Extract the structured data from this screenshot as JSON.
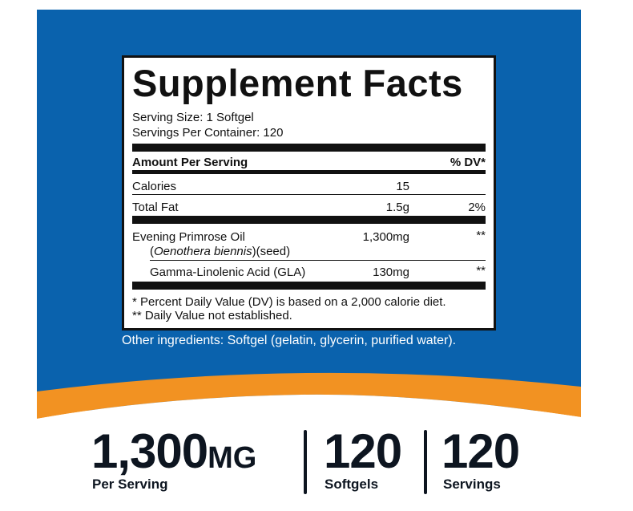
{
  "colors": {
    "background_blue": "#0a62ad",
    "accent_orange": "#f29222",
    "text_dark": "#0d1520"
  },
  "label": {
    "title": "Supplement Facts",
    "serving_size": "Serving Size: 1 Softgel",
    "servings_per_container": "Servings Per Container: 120",
    "header_amount": "Amount Per Serving",
    "header_dv": "% DV*",
    "rows": [
      {
        "name": "Calories",
        "amount": "15",
        "dv": ""
      },
      {
        "name": "Total Fat",
        "amount": "1.5g",
        "dv": "2%"
      },
      {
        "name": "Evening Primrose Oil",
        "sub_italic": "Oenothera biennis",
        "sub_paren_open": "(",
        "sub_rest": ")(seed)",
        "amount": "1,300mg",
        "dv": "**"
      },
      {
        "name": "Gamma-Linolenic Acid (GLA)",
        "amount": "130mg",
        "dv": "**"
      }
    ],
    "footnote1": "* Percent Daily Value (DV) is based on a 2,000 calorie diet.",
    "footnote2": "** Daily Value not established."
  },
  "other_ingredients": "Other ingredients: Softgel (gelatin, glycerin, purified water).",
  "stats": [
    {
      "value": "1,300",
      "unit": "MG",
      "label": "Per Serving"
    },
    {
      "value": "120",
      "label": "Softgels"
    },
    {
      "value": "120",
      "label": "Servings"
    }
  ]
}
